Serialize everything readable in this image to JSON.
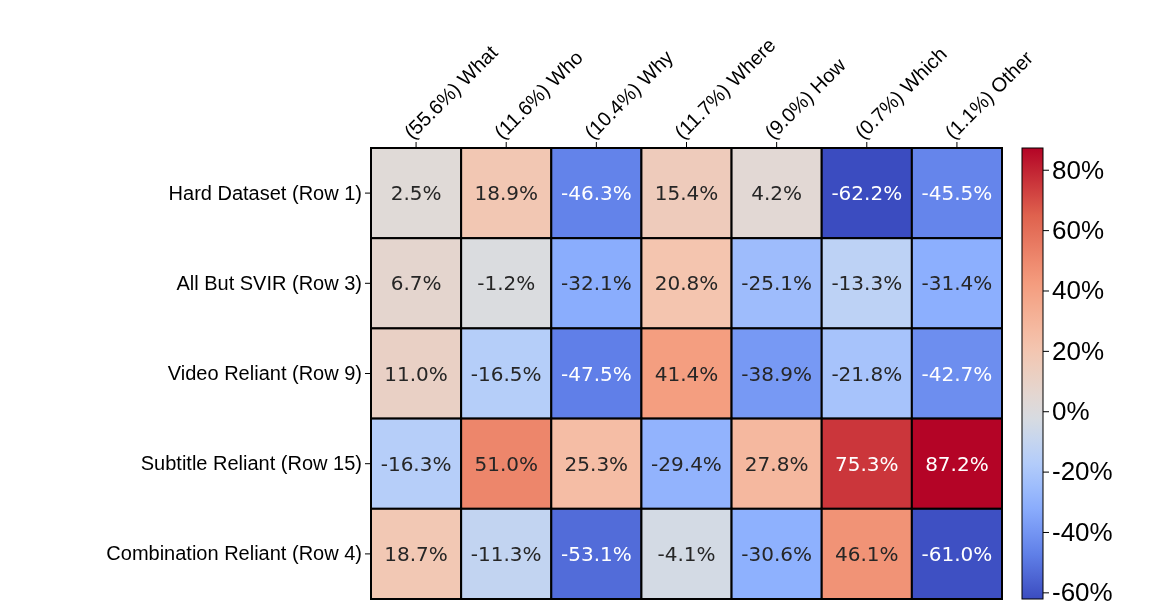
{
  "chart_data": {
    "type": "heatmap",
    "categories": [
      "(55.6%) What",
      "(11.6%) Who",
      "(10.4%) Why",
      "(11.7%) Where",
      "(9.0%) How",
      "(0.7%) Which",
      "(1.1%) Other"
    ],
    "y_categories": [
      "Hard Dataset (Row 1)",
      "All But SVIR (Row 3)",
      "Video Reliant (Row 9)",
      "Subtitle Reliant (Row 15)",
      "Combination Reliant (Row 4)"
    ],
    "cells": [
      [
        2.5,
        18.9,
        -46.3,
        15.4,
        4.2,
        -62.2,
        -45.5
      ],
      [
        6.7,
        -1.2,
        -32.1,
        20.8,
        -25.1,
        -13.3,
        -31.4
      ],
      [
        11.0,
        -16.5,
        -47.5,
        41.4,
        -38.9,
        -21.8,
        -42.7
      ],
      [
        -16.3,
        51.0,
        25.3,
        -29.4,
        27.8,
        75.3,
        87.2
      ],
      [
        18.7,
        -11.3,
        -53.1,
        -4.1,
        -30.6,
        46.1,
        -61.0
      ]
    ],
    "cell_labels": [
      [
        "2.5%",
        "18.9%",
        "-46.3%",
        "15.4%",
        "4.2%",
        "-62.2%",
        "-45.5%"
      ],
      [
        "6.7%",
        "-1.2%",
        "-32.1%",
        "20.8%",
        "-25.1%",
        "-13.3%",
        "-31.4%"
      ],
      [
        "11.0%",
        "-16.5%",
        "-47.5%",
        "41.4%",
        "-38.9%",
        "-21.8%",
        "-42.7%"
      ],
      [
        "-16.3%",
        "51.0%",
        "25.3%",
        "-29.4%",
        "27.8%",
        "75.3%",
        "87.2%"
      ],
      [
        "18.7%",
        "-11.3%",
        "-53.1%",
        "-4.1%",
        "-30.6%",
        "46.1%",
        "-61.0%"
      ]
    ],
    "clim": [
      -62.2,
      87.2
    ],
    "cticks": [
      {
        "value": -60,
        "label": "-60%"
      },
      {
        "value": -40,
        "label": "-40%"
      },
      {
        "value": -20,
        "label": "-20%"
      },
      {
        "value": 0,
        "label": "0%"
      },
      {
        "value": 20,
        "label": "20%"
      },
      {
        "value": 40,
        "label": "40%"
      },
      {
        "value": 60,
        "label": "60%"
      },
      {
        "value": 80,
        "label": "80%"
      }
    ]
  }
}
